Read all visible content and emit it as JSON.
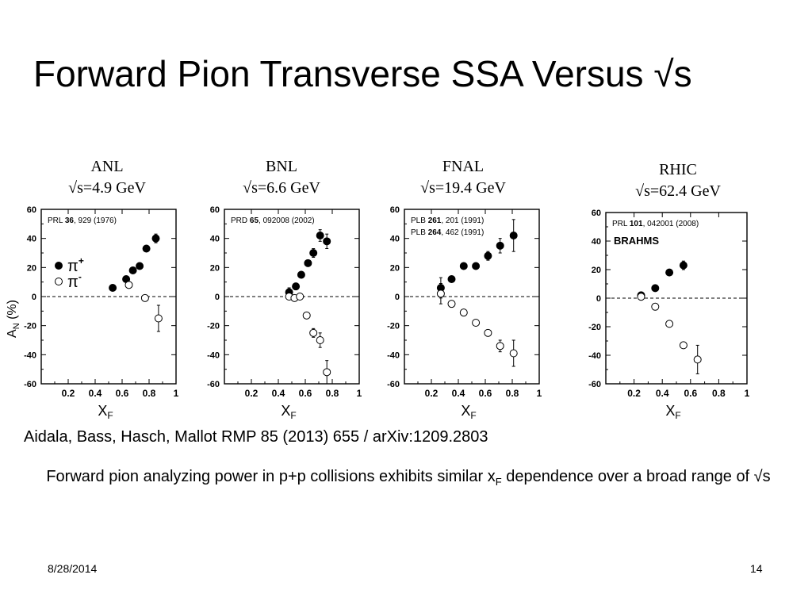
{
  "slide": {
    "title": "Forward Pion Transverse SSA Versus √s",
    "citation": "Aidala, Bass, Hasch, Mallot  RMP 85 (2013) 655 / arXiv:1209.2803",
    "caption_part1": "Forward pion analyzing power in p+p collisions exhibits similar x",
    "caption_sub": "F",
    "caption_part2": " dependence over a broad range of √s",
    "date": "8/28/2014",
    "page_number": "14"
  },
  "panel_labels": [
    {
      "experiment": "ANL",
      "energy": "√s=4.9 GeV"
    },
    {
      "experiment": "BNL",
      "energy": "√s=6.6 GeV"
    },
    {
      "experiment": "FNAL",
      "energy": "√s=19.4 GeV"
    },
    {
      "experiment": "RHIC",
      "energy": "√s=62.4 GeV"
    }
  ],
  "chart_data": [
    {
      "type": "scatter",
      "title": "ANL",
      "xlabel": "X_F",
      "ylabel": "A_N (%)",
      "xlim": [
        0,
        1
      ],
      "ylim": [
        -60,
        60
      ],
      "xticks": [
        "0.2",
        "0.4",
        "0.6",
        "0.8",
        "1"
      ],
      "yticks": [
        "60",
        "40",
        "20",
        "0",
        "-20",
        "-40",
        "-60"
      ],
      "zero_line": true,
      "references": [
        {
          "pre": "PRL ",
          "bold": "36",
          "post": ", 929 (1976)"
        }
      ],
      "legend": {
        "pi_plus": "π",
        "pi_plus_sup": "+",
        "pi_minus": "π",
        "pi_minus_sup": "-"
      },
      "series": [
        {
          "name": "π+",
          "marker": "filled",
          "points": [
            {
              "x": 0.53,
              "y": 6,
              "err": 1.5
            },
            {
              "x": 0.63,
              "y": 12,
              "err": 1.5
            },
            {
              "x": 0.68,
              "y": 18,
              "err": 1.5
            },
            {
              "x": 0.73,
              "y": 21,
              "err": 1.5
            },
            {
              "x": 0.78,
              "y": 33,
              "err": 2
            },
            {
              "x": 0.85,
              "y": 40,
              "err": 3
            }
          ]
        },
        {
          "name": "π-",
          "marker": "open",
          "points": [
            {
              "x": 0.65,
              "y": 8,
              "err": 2
            },
            {
              "x": 0.77,
              "y": -1,
              "err": 2
            },
            {
              "x": 0.87,
              "y": -15,
              "err": 9
            }
          ]
        }
      ]
    },
    {
      "type": "scatter",
      "title": "BNL",
      "xlabel": "X_F",
      "ylabel": "A_N (%)",
      "xlim": [
        0,
        1
      ],
      "ylim": [
        -60,
        60
      ],
      "xticks": [
        "0.2",
        "0.4",
        "0.6",
        "0.8",
        "1"
      ],
      "yticks": [
        "60",
        "40",
        "20",
        "0",
        "-20",
        "-40",
        "-60"
      ],
      "zero_line": true,
      "references": [
        {
          "pre": "PRD ",
          "bold": "65",
          "post": ", 092008 (2002)"
        }
      ],
      "series": [
        {
          "name": "π+",
          "marker": "filled",
          "points": [
            {
              "x": 0.48,
              "y": 3,
              "err": 3
            },
            {
              "x": 0.53,
              "y": 7,
              "err": 2
            },
            {
              "x": 0.57,
              "y": 15,
              "err": 2
            },
            {
              "x": 0.62,
              "y": 23,
              "err": 2
            },
            {
              "x": 0.66,
              "y": 30,
              "err": 3
            },
            {
              "x": 0.71,
              "y": 42,
              "err": 4
            },
            {
              "x": 0.76,
              "y": 38,
              "err": 5
            }
          ]
        },
        {
          "name": "π-",
          "marker": "open",
          "points": [
            {
              "x": 0.48,
              "y": 0,
              "err": 2
            },
            {
              "x": 0.52,
              "y": -1,
              "err": 2
            },
            {
              "x": 0.56,
              "y": 0,
              "err": 2
            },
            {
              "x": 0.61,
              "y": -13,
              "err": 2
            },
            {
              "x": 0.66,
              "y": -25,
              "err": 3
            },
            {
              "x": 0.71,
              "y": -30,
              "err": 5
            },
            {
              "x": 0.76,
              "y": -52,
              "err": 8
            }
          ]
        }
      ]
    },
    {
      "type": "scatter",
      "title": "FNAL",
      "xlabel": "X_F",
      "ylabel": "A_N (%)",
      "xlim": [
        0,
        1
      ],
      "ylim": [
        -60,
        60
      ],
      "xticks": [
        "0.2",
        "0.4",
        "0.6",
        "0.8",
        "1"
      ],
      "yticks": [
        "60",
        "40",
        "20",
        "0",
        "-20",
        "-40",
        "-60"
      ],
      "zero_line": true,
      "references": [
        {
          "pre": "PLB ",
          "bold": "261",
          "post": ", 201 (1991)"
        },
        {
          "pre": "PLB ",
          "bold": "264",
          "post": ", 462 (1991)"
        }
      ],
      "series": [
        {
          "name": "π+",
          "marker": "filled",
          "points": [
            {
              "x": 0.27,
              "y": 6,
              "err": 7
            },
            {
              "x": 0.35,
              "y": 12,
              "err": 2
            },
            {
              "x": 0.44,
              "y": 21,
              "err": 2
            },
            {
              "x": 0.53,
              "y": 21,
              "err": 2
            },
            {
              "x": 0.62,
              "y": 28,
              "err": 3
            },
            {
              "x": 0.71,
              "y": 35,
              "err": 5
            },
            {
              "x": 0.81,
              "y": 42,
              "err": 11
            }
          ]
        },
        {
          "name": "π-",
          "marker": "open",
          "points": [
            {
              "x": 0.27,
              "y": 2,
              "err": 7
            },
            {
              "x": 0.35,
              "y": -5,
              "err": 2
            },
            {
              "x": 0.44,
              "y": -11,
              "err": 2
            },
            {
              "x": 0.53,
              "y": -18,
              "err": 2
            },
            {
              "x": 0.62,
              "y": -25,
              "err": 2
            },
            {
              "x": 0.71,
              "y": -34,
              "err": 4
            },
            {
              "x": 0.81,
              "y": -39,
              "err": 9
            }
          ]
        }
      ]
    },
    {
      "type": "scatter",
      "title": "RHIC",
      "xlabel": "X_F",
      "ylabel": "A_N (%)",
      "xlim": [
        0,
        1
      ],
      "ylim": [
        -60,
        60
      ],
      "xticks": [
        "0.2",
        "0.4",
        "0.6",
        "0.8",
        "1"
      ],
      "yticks": [
        "60",
        "40",
        "20",
        "0",
        "-20",
        "-40",
        "-60"
      ],
      "zero_line": true,
      "references": [
        {
          "pre": "PRL ",
          "bold": "101",
          "post": ", 042001 (2008)"
        }
      ],
      "experiment_tag": "BRAHMS",
      "series": [
        {
          "name": "π+",
          "marker": "filled",
          "points": [
            {
              "x": 0.25,
              "y": 2,
              "err": 1.5
            },
            {
              "x": 0.35,
              "y": 7,
              "err": 1.5
            },
            {
              "x": 0.45,
              "y": 18,
              "err": 1.5
            },
            {
              "x": 0.55,
              "y": 23,
              "err": 3
            }
          ]
        },
        {
          "name": "π-",
          "marker": "open",
          "points": [
            {
              "x": 0.25,
              "y": 1,
              "err": 1.5
            },
            {
              "x": 0.35,
              "y": -6,
              "err": 1.5
            },
            {
              "x": 0.45,
              "y": -18,
              "err": 1.5
            },
            {
              "x": 0.55,
              "y": -33,
              "err": 2
            },
            {
              "x": 0.65,
              "y": -43,
              "err": 10
            }
          ]
        }
      ]
    }
  ]
}
